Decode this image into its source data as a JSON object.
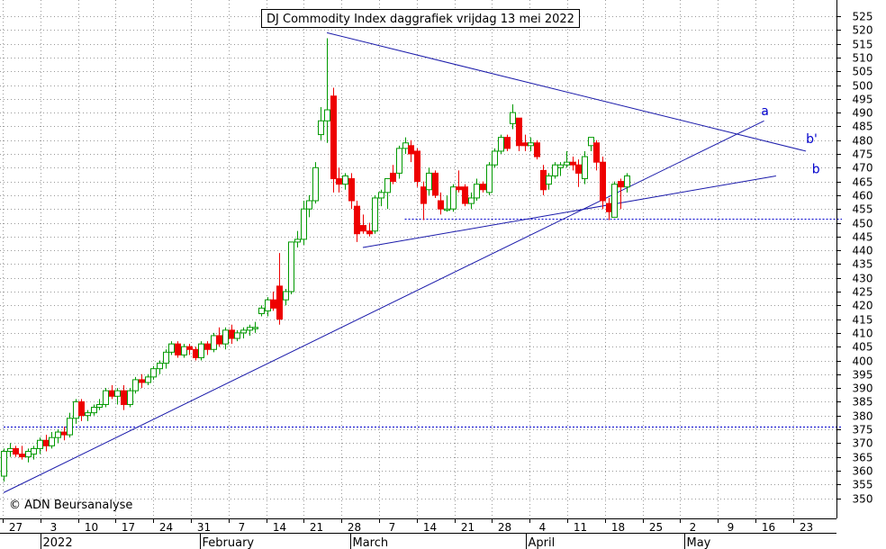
{
  "chart_data": {
    "type": "candlestick",
    "title": "DJ Commodity Index daggrafiek vrijdag 13 mei 2022",
    "credit": "© ADN Beursanalyse",
    "ylim": [
      345,
      528
    ],
    "y_ticks": [
      350,
      355,
      360,
      365,
      370,
      375,
      380,
      385,
      390,
      395,
      400,
      405,
      410,
      415,
      420,
      425,
      430,
      435,
      440,
      445,
      450,
      455,
      460,
      465,
      470,
      475,
      480,
      485,
      490,
      495,
      500,
      505,
      510,
      515,
      520,
      525
    ],
    "x_day_labels": [
      "27",
      "3",
      "10",
      "17",
      "24",
      "31",
      "7",
      "14",
      "21",
      "28",
      "7",
      "14",
      "21",
      "28",
      "4",
      "11",
      "18",
      "25",
      "2",
      "9",
      "16",
      "23"
    ],
    "x_month_labels": [
      "2022",
      "February",
      "March",
      "April",
      "May"
    ],
    "grid": true,
    "colors": {
      "up": "#009900",
      "down": "#ee0000",
      "trend": "#1a1aaa",
      "dotted": "#0000cc",
      "grid": "#999999"
    },
    "candles": [
      {
        "o": 358,
        "h": 368,
        "l": 356,
        "c": 367
      },
      {
        "o": 367,
        "h": 370,
        "l": 365,
        "c": 368
      },
      {
        "o": 368,
        "h": 369,
        "l": 365,
        "c": 366
      },
      {
        "o": 366,
        "h": 369,
        "l": 364,
        "c": 365
      },
      {
        "o": 365,
        "h": 368,
        "l": 363,
        "c": 367
      },
      {
        "o": 366,
        "h": 369,
        "l": 364,
        "c": 368
      },
      {
        "o": 368,
        "h": 372,
        "l": 366,
        "c": 371
      },
      {
        "o": 371,
        "h": 373,
        "l": 367,
        "c": 369
      },
      {
        "o": 369,
        "h": 374,
        "l": 368,
        "c": 372
      },
      {
        "o": 372,
        "h": 375,
        "l": 370,
        "c": 374
      },
      {
        "o": 374,
        "h": 376,
        "l": 371,
        "c": 373
      },
      {
        "o": 373,
        "h": 381,
        "l": 372,
        "c": 379
      },
      {
        "o": 379,
        "h": 386,
        "l": 377,
        "c": 385
      },
      {
        "o": 385,
        "h": 386,
        "l": 378,
        "c": 380
      },
      {
        "o": 380,
        "h": 382,
        "l": 378,
        "c": 381
      },
      {
        "o": 381,
        "h": 384,
        "l": 380,
        "c": 383
      },
      {
        "o": 383,
        "h": 386,
        "l": 382,
        "c": 384
      },
      {
        "o": 384,
        "h": 390,
        "l": 383,
        "c": 389
      },
      {
        "o": 389,
        "h": 391,
        "l": 386,
        "c": 387
      },
      {
        "o": 387,
        "h": 390,
        "l": 384,
        "c": 389
      },
      {
        "o": 389,
        "h": 391,
        "l": 382,
        "c": 384
      },
      {
        "o": 384,
        "h": 390,
        "l": 383,
        "c": 389
      },
      {
        "o": 389,
        "h": 394,
        "l": 388,
        "c": 393
      },
      {
        "o": 393,
        "h": 395,
        "l": 390,
        "c": 392
      },
      {
        "o": 392,
        "h": 395,
        "l": 391,
        "c": 394
      },
      {
        "o": 394,
        "h": 398,
        "l": 393,
        "c": 397
      },
      {
        "o": 397,
        "h": 400,
        "l": 395,
        "c": 399
      },
      {
        "o": 399,
        "h": 404,
        "l": 397,
        "c": 403
      },
      {
        "o": 403,
        "h": 407,
        "l": 402,
        "c": 406
      },
      {
        "o": 406,
        "h": 407,
        "l": 401,
        "c": 402
      },
      {
        "o": 402,
        "h": 406,
        "l": 401,
        "c": 405
      },
      {
        "o": 405,
        "h": 406,
        "l": 402,
        "c": 404
      },
      {
        "o": 404,
        "h": 405,
        "l": 400,
        "c": 401
      },
      {
        "o": 401,
        "h": 407,
        "l": 400,
        "c": 406
      },
      {
        "o": 406,
        "h": 407,
        "l": 402,
        "c": 404
      },
      {
        "o": 404,
        "h": 410,
        "l": 403,
        "c": 409
      },
      {
        "o": 409,
        "h": 412,
        "l": 405,
        "c": 406
      },
      {
        "o": 406,
        "h": 412,
        "l": 404,
        "c": 411
      },
      {
        "o": 411,
        "h": 413,
        "l": 406,
        "c": 408
      },
      {
        "o": 408,
        "h": 411,
        "l": 407,
        "c": 410
      },
      {
        "o": 410,
        "h": 412,
        "l": 408,
        "c": 411
      },
      {
        "o": 411,
        "h": 413,
        "l": 409,
        "c": 412
      },
      {
        "o": 412,
        "h": 414,
        "l": 410,
        "c": 412
      },
      {
        "o": 417,
        "h": 420,
        "l": 416,
        "c": 419
      },
      {
        "o": 418,
        "h": 423,
        "l": 416,
        "c": 422
      },
      {
        "o": 422,
        "h": 425,
        "l": 418,
        "c": 419
      },
      {
        "o": 427,
        "h": 439,
        "l": 413,
        "c": 415
      },
      {
        "o": 422,
        "h": 426,
        "l": 420,
        "c": 425
      },
      {
        "o": 425,
        "h": 443,
        "l": 424,
        "c": 443
      },
      {
        "o": 443,
        "h": 447,
        "l": 441,
        "c": 444
      },
      {
        "o": 444,
        "h": 458,
        "l": 442,
        "c": 455
      },
      {
        "o": 455,
        "h": 460,
        "l": 452,
        "c": 458
      },
      {
        "o": 458,
        "h": 472,
        "l": 457,
        "c": 470
      },
      {
        "o": 482,
        "h": 492,
        "l": 480,
        "c": 487
      },
      {
        "o": 487,
        "h": 517,
        "l": 479,
        "c": 491
      },
      {
        "o": 496,
        "h": 499,
        "l": 461,
        "c": 466
      },
      {
        "o": 466,
        "h": 470,
        "l": 461,
        "c": 464
      },
      {
        "o": 464,
        "h": 468,
        "l": 462,
        "c": 467
      },
      {
        "o": 466,
        "h": 468,
        "l": 455,
        "c": 458
      },
      {
        "o": 456,
        "h": 458,
        "l": 443,
        "c": 446
      },
      {
        "o": 449,
        "h": 453,
        "l": 446,
        "c": 447
      },
      {
        "o": 447,
        "h": 450,
        "l": 445,
        "c": 446
      },
      {
        "o": 447,
        "h": 460,
        "l": 446,
        "c": 459
      },
      {
        "o": 459,
        "h": 462,
        "l": 456,
        "c": 461
      },
      {
        "o": 461,
        "h": 465,
        "l": 455,
        "c": 466
      },
      {
        "o": 468,
        "h": 471,
        "l": 464,
        "c": 465
      },
      {
        "o": 468,
        "h": 478,
        "l": 466,
        "c": 477
      },
      {
        "o": 477,
        "h": 481,
        "l": 475,
        "c": 479
      },
      {
        "o": 478,
        "h": 480,
        "l": 472,
        "c": 475
      },
      {
        "o": 476,
        "h": 477,
        "l": 463,
        "c": 465
      },
      {
        "o": 463,
        "h": 465,
        "l": 451,
        "c": 457
      },
      {
        "o": 462,
        "h": 470,
        "l": 460,
        "c": 468
      },
      {
        "o": 468,
        "h": 469,
        "l": 459,
        "c": 460
      },
      {
        "o": 458,
        "h": 461,
        "l": 453,
        "c": 455
      },
      {
        "o": 455,
        "h": 460,
        "l": 454,
        "c": 455
      },
      {
        "o": 455,
        "h": 464,
        "l": 454,
        "c": 463
      },
      {
        "o": 463,
        "h": 469,
        "l": 461,
        "c": 462
      },
      {
        "o": 463,
        "h": 464,
        "l": 456,
        "c": 457
      },
      {
        "o": 457,
        "h": 461,
        "l": 455,
        "c": 459
      },
      {
        "o": 459,
        "h": 466,
        "l": 458,
        "c": 464
      },
      {
        "o": 464,
        "h": 465,
        "l": 461,
        "c": 462
      },
      {
        "o": 461,
        "h": 472,
        "l": 460,
        "c": 471
      },
      {
        "o": 471,
        "h": 477,
        "l": 470,
        "c": 476
      },
      {
        "o": 476,
        "h": 482,
        "l": 475,
        "c": 481
      },
      {
        "o": 481,
        "h": 482,
        "l": 476,
        "c": 477
      },
      {
        "o": 486,
        "h": 493,
        "l": 484,
        "c": 490
      },
      {
        "o": 488,
        "h": 488,
        "l": 476,
        "c": 478
      },
      {
        "o": 479,
        "h": 482,
        "l": 476,
        "c": 478
      },
      {
        "o": 478,
        "h": 481,
        "l": 476,
        "c": 479
      },
      {
        "o": 479,
        "h": 480,
        "l": 473,
        "c": 474
      },
      {
        "o": 469,
        "h": 471,
        "l": 460,
        "c": 462
      },
      {
        "o": 464,
        "h": 468,
        "l": 462,
        "c": 467
      },
      {
        "o": 467,
        "h": 472,
        "l": 466,
        "c": 471
      },
      {
        "o": 470,
        "h": 472,
        "l": 467,
        "c": 471
      },
      {
        "o": 471,
        "h": 476,
        "l": 470,
        "c": 472
      },
      {
        "o": 472,
        "h": 474,
        "l": 469,
        "c": 471
      },
      {
        "o": 471,
        "h": 473,
        "l": 463,
        "c": 468
      },
      {
        "o": 466,
        "h": 476,
        "l": 464,
        "c": 474
      },
      {
        "o": 478,
        "h": 481,
        "l": 476,
        "c": 481
      },
      {
        "o": 479,
        "h": 480,
        "l": 469,
        "c": 472
      },
      {
        "o": 472,
        "h": 474,
        "l": 455,
        "c": 458
      },
      {
        "o": 457,
        "h": 459,
        "l": 451,
        "c": 454
      },
      {
        "o": 452,
        "h": 465,
        "l": 452,
        "c": 464
      },
      {
        "o": 465,
        "h": 466,
        "l": 455,
        "c": 463
      },
      {
        "o": 463,
        "h": 468,
        "l": 461,
        "c": 467
      }
    ],
    "trendlines": [
      {
        "name": "a",
        "from": [
          0,
          352
        ],
        "to": [
          127,
          487
        ]
      },
      {
        "name": "b'",
        "from": [
          54,
          519
        ],
        "to": [
          134,
          476
        ]
      },
      {
        "name": "b",
        "from": [
          60,
          441
        ],
        "to": [
          129,
          467
        ]
      }
    ],
    "horizontal_levels": [
      {
        "value": 376,
        "from": 0,
        "to": 140
      },
      {
        "value": 451.5,
        "from": 67,
        "to": 140
      }
    ],
    "line_labels": [
      {
        "text": "a",
        "x": 126.5,
        "y": 489
      },
      {
        "text": "b'",
        "x": 134,
        "y": 479
      },
      {
        "text": "b",
        "x": 135,
        "y": 468
      }
    ]
  }
}
